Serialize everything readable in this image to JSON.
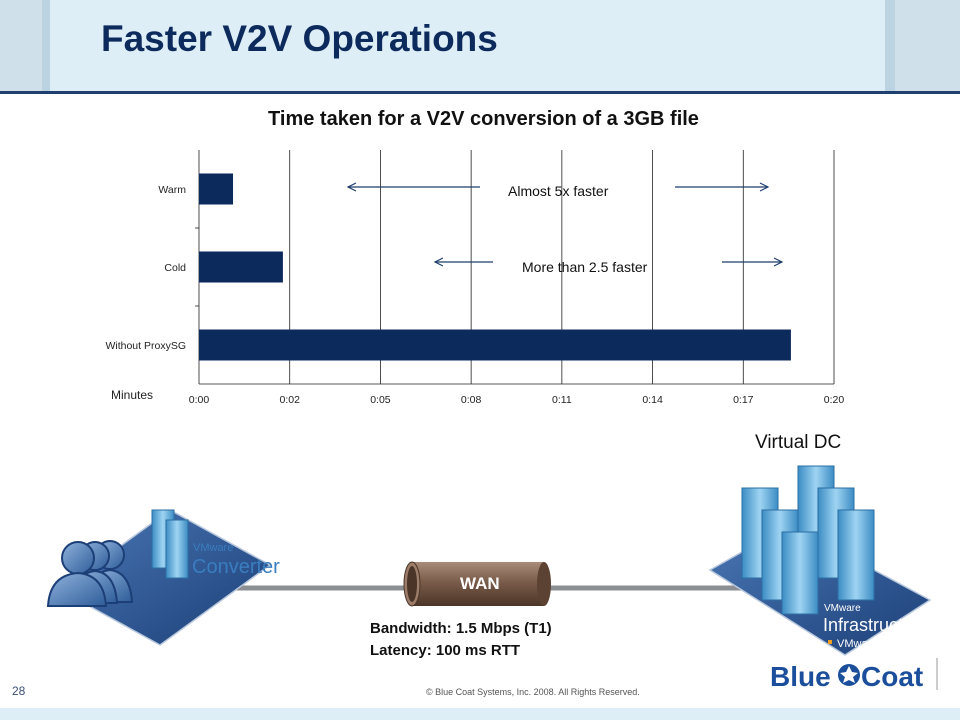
{
  "slide": {
    "title": "Faster V2V Operations",
    "page_number": "28",
    "copyright": "© Blue Coat Systems, Inc. 2008.  All Rights Reserved."
  },
  "chart_data": {
    "type": "bar",
    "orientation": "horizontal",
    "title": "Time taken for a V2V conversion of a 3GB file",
    "xlabel": "Minutes",
    "categories": [
      "Warm",
      "Cold",
      "Without ProxySG"
    ],
    "values": [
      0.75,
      1.85,
      13.05
    ],
    "x_ticks": [
      "0:00",
      "0:02",
      "0:05",
      "0:08",
      "0:11",
      "0:14",
      "0:17",
      "0:20"
    ],
    "xlim": [
      0,
      14
    ],
    "grid": true,
    "bar_color": "#0d2a5c",
    "annotations": [
      {
        "text": "Almost 5x faster",
        "category": "Warm"
      },
      {
        "text": "More than 2.5  faster",
        "category": "Cold"
      }
    ]
  },
  "diagram": {
    "virtual_dc_label": "Virtual DC",
    "wan_label": "WAN",
    "converter_brand": "VMware",
    "converter_product": "Converter",
    "infra_brand": "VMware",
    "infra_product": "Infrastructure",
    "infra_subproduct": "VMware ESX",
    "bandwidth": "Bandwidth: 1.5 Mbps (T1)",
    "latency": "Latency: 100 ms RTT",
    "logo_text_blue": "Blue",
    "logo_text_coat": "Coat"
  },
  "colors": {
    "brand_navy": "#0d2a5c",
    "header_bg": "#ddeef7",
    "server_blue": "#5aa6d6",
    "pipe_brown": "#7a5c4a"
  }
}
